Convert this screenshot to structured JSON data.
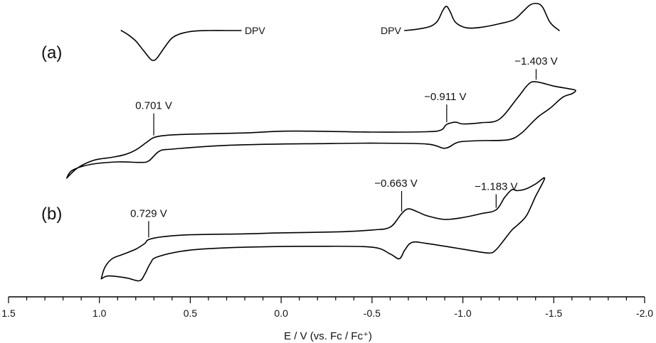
{
  "chart_data": {
    "type": "line",
    "x_axis": {
      "label": "E / V (vs. Fc / Fc⁺)",
      "range": [
        1.5,
        -2.0
      ],
      "ticks": [
        "1.5",
        "1.0",
        "0.5",
        "0.0",
        "-0.5",
        "-1.0",
        "-1.5",
        "-2.0"
      ],
      "tick_values": [
        1.5,
        1.0,
        0.5,
        0.0,
        -0.5,
        -1.0,
        -1.5,
        -2.0
      ],
      "minor_tick_step": 0.1
    },
    "panels": [
      {
        "label": "(a)",
        "cv": {
          "forward": [
            [
              1.18,
              -2.2
            ],
            [
              1.12,
              -1.6
            ],
            [
              1.03,
              -1.15
            ],
            [
              0.93,
              -0.98
            ],
            [
              0.86,
              -0.82
            ],
            [
              0.8,
              -0.55
            ],
            [
              0.74,
              -0.1
            ],
            [
              0.701,
              0.18
            ],
            [
              0.64,
              0.3
            ],
            [
              0.5,
              0.38
            ],
            [
              0.2,
              0.45
            ],
            [
              0.0,
              0.55
            ],
            [
              -0.2,
              0.55
            ],
            [
              -0.5,
              0.5
            ],
            [
              -0.8,
              0.52
            ],
            [
              -0.88,
              0.62
            ],
            [
              -0.911,
              0.95
            ],
            [
              -0.96,
              1.08
            ],
            [
              -1.0,
              0.98
            ],
            [
              -1.1,
              1.05
            ],
            [
              -1.2,
              1.25
            ],
            [
              -1.3,
              2.5
            ],
            [
              -1.36,
              3.3
            ],
            [
              -1.403,
              3.45
            ],
            [
              -1.5,
              3.2
            ],
            [
              -1.58,
              3.05
            ],
            [
              -1.62,
              2.95
            ],
            [
              -1.6,
              2.75
            ],
            [
              -1.55,
              2.55
            ],
            [
              -1.48,
              1.9
            ],
            [
              -1.42,
              1.45
            ],
            [
              -1.38,
              1.05
            ],
            [
              -1.32,
              0.42
            ],
            [
              -1.25,
              0.05
            ],
            [
              -1.1,
              0.0
            ],
            [
              -1.0,
              -0.05
            ],
            [
              -0.96,
              -0.15
            ],
            [
              -0.9,
              -0.45
            ],
            [
              -0.8,
              -0.2
            ],
            [
              -0.5,
              -0.15
            ],
            [
              -0.2,
              -0.18
            ],
            [
              0.0,
              -0.2
            ],
            [
              0.3,
              -0.28
            ],
            [
              0.6,
              -0.5
            ],
            [
              0.67,
              -0.62
            ],
            [
              0.73,
              -1.2
            ],
            [
              0.78,
              -1.28
            ],
            [
              0.9,
              -1.25
            ],
            [
              1.05,
              -1.4
            ],
            [
              1.15,
              -1.75
            ],
            [
              1.18,
              -2.2
            ]
          ],
          "annotations": [
            {
              "text": "0.701 V",
              "x": 0.701
            },
            {
              "text": "−0.911 V",
              "x": -0.911
            },
            {
              "text": "−1.403 V",
              "x": -1.403
            }
          ]
        },
        "dpv": [
          {
            "label": "DPV",
            "x": [
              0.88,
              0.84,
              0.8,
              0.76,
              0.72,
              0.7,
              0.68,
              0.64,
              0.6,
              0.55,
              0.48,
              0.4,
              0.3,
              0.22
            ],
            "y": [
              0.0,
              -0.15,
              -0.35,
              -0.65,
              -0.95,
              -1.0,
              -0.9,
              -0.55,
              -0.25,
              -0.1,
              -0.02,
              0.0,
              0.0,
              0.0
            ]
          },
          {
            "label": "DPV",
            "x": [
              -0.68,
              -0.75,
              -0.82,
              -0.86,
              -0.89,
              -0.91,
              -0.93,
              -0.96,
              -1.02,
              -1.1,
              -1.2,
              -1.28,
              -1.33,
              -1.37,
              -1.41,
              -1.44,
              -1.48,
              -1.53
            ],
            "y": [
              0.0,
              0.05,
              0.15,
              0.35,
              0.75,
              0.9,
              0.7,
              0.3,
              0.1,
              0.12,
              0.25,
              0.4,
              0.7,
              0.95,
              1.0,
              0.85,
              0.3,
              0.0
            ]
          }
        ]
      },
      {
        "label": "(b)",
        "cv": {
          "forward": [
            [
              0.99,
              -2.1
            ],
            [
              0.97,
              -1.5
            ],
            [
              0.93,
              -1.05
            ],
            [
              0.87,
              -0.82
            ],
            [
              0.8,
              -0.55
            ],
            [
              0.75,
              -0.25
            ],
            [
              0.729,
              -0.05
            ],
            [
              0.65,
              0.1
            ],
            [
              0.5,
              0.2
            ],
            [
              0.2,
              0.25
            ],
            [
              0.0,
              0.3
            ],
            [
              -0.3,
              0.35
            ],
            [
              -0.5,
              0.45
            ],
            [
              -0.6,
              0.6
            ],
            [
              -0.663,
              1.3
            ],
            [
              -0.7,
              1.55
            ],
            [
              -0.75,
              1.4
            ],
            [
              -0.8,
              1.2
            ],
            [
              -0.9,
              1.0
            ],
            [
              -1.0,
              1.1
            ],
            [
              -1.1,
              1.3
            ],
            [
              -1.183,
              1.5
            ],
            [
              -1.23,
              2.15
            ],
            [
              -1.27,
              2.55
            ],
            [
              -1.3,
              2.5
            ],
            [
              -1.35,
              2.6
            ],
            [
              -1.4,
              2.85
            ],
            [
              -1.45,
              3.15
            ],
            [
              -1.4,
              2.2
            ],
            [
              -1.35,
              1.2
            ],
            [
              -1.3,
              0.7
            ],
            [
              -1.27,
              0.45
            ],
            [
              -1.22,
              -0.15
            ],
            [
              -1.18,
              -0.6
            ],
            [
              -1.14,
              -0.75
            ],
            [
              -1.0,
              -0.55
            ],
            [
              -0.8,
              -0.25
            ],
            [
              -0.72,
              -0.2
            ],
            [
              -0.68,
              -0.6
            ],
            [
              -0.65,
              -1.05
            ],
            [
              -0.6,
              -0.8
            ],
            [
              -0.5,
              -0.45
            ],
            [
              -0.2,
              -0.4
            ],
            [
              0.2,
              -0.45
            ],
            [
              0.5,
              -0.6
            ],
            [
              0.68,
              -0.95
            ],
            [
              0.72,
              -1.3
            ],
            [
              0.75,
              -1.85
            ],
            [
              0.78,
              -2.2
            ],
            [
              0.85,
              -2.05
            ],
            [
              0.95,
              -1.95
            ],
            [
              0.99,
              -2.1
            ]
          ],
          "annotations": [
            {
              "text": "0.729 V",
              "x": 0.729
            },
            {
              "text": "−0.663 V",
              "x": -0.663
            },
            {
              "text": "−1.183 V",
              "x": -1.183
            }
          ]
        }
      }
    ]
  }
}
